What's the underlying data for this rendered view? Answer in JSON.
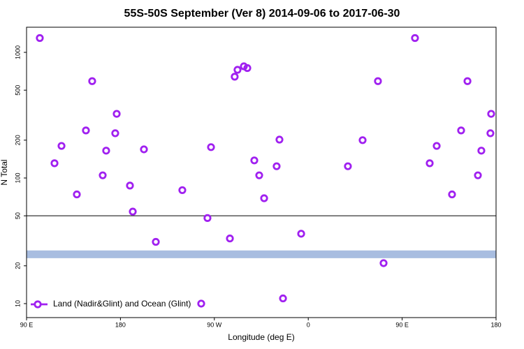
{
  "chart_data": {
    "type": "scatter",
    "title": "55S-50S September (Ver 8)   2014-09-06 to 2017-06-30",
    "xlabel": "Longitude (deg E)",
    "ylabel": "N Total",
    "xlim": [
      90,
      540
    ],
    "xticks": [
      {
        "value": 90,
        "label": "90 E"
      },
      180,
      {
        "value": 270,
        "label": "90 W"
      },
      {
        "value": 360,
        "label": "0"
      },
      {
        "value": 450,
        "label": "90 E"
      },
      {
        "value": 540,
        "label": "180"
      }
    ],
    "ylim": [
      7.74,
      1585
    ],
    "log_y": true,
    "yticks": [
      10,
      20,
      50,
      100,
      200,
      500,
      1000
    ],
    "hline": 50,
    "band": {
      "ylim": [
        23,
        26.5
      ],
      "color": "#a8bde0"
    },
    "legend": "bottom-left",
    "series": [
      {
        "name": "Land (Nadir&Glint) and Ocean (Glint)",
        "color": "#a020f0",
        "x": [
          102.7,
          116.8,
          123.5,
          138.2,
          146.9,
          152.9,
          163,
          166.3,
          175,
          176.4,
          189.1,
          191.8,
          202.5,
          213.9,
          239.3,
          257.4,
          263.4,
          266.8,
          284.9,
          289.5,
          292.2,
          298.3,
          301.6,
          308.3,
          313,
          317.7,
          329.7,
          332.4,
          335.8,
          353.2,
          398,
          412.1,
          426.8,
          432.2,
          462.3,
          476.4,
          483.1,
          497.8,
          506.5,
          512.6,
          522.6,
          525.9,
          534.6,
          535.3
        ],
        "values": [
          1300,
          131,
          180,
          74,
          239,
          590,
          105,
          165,
          227,
          324,
          87,
          54,
          169,
          31,
          80,
          10,
          48,
          176,
          33,
          640,
          726,
          774,
          750,
          138,
          105,
          69,
          124,
          202,
          11,
          36,
          124,
          200,
          590,
          21,
          1300,
          131,
          180,
          74,
          239,
          590,
          105,
          165,
          227,
          324
        ]
      }
    ]
  }
}
